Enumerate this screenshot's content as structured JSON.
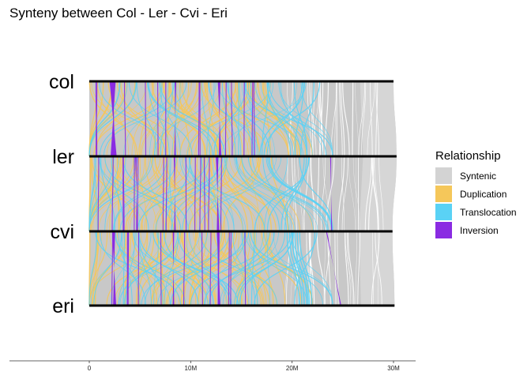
{
  "chart_data": {
    "type": "synteny",
    "title": "Synteny between Col - Ler - Cvi - Eri",
    "genomes": [
      {
        "name": "col",
        "length_bp": 30000000
      },
      {
        "name": "ler",
        "length_bp": 30300000
      },
      {
        "name": "cvi",
        "length_bp": 29900000
      },
      {
        "name": "eri",
        "length_bp": 30100000
      }
    ],
    "x_axis": {
      "range": [
        0,
        32000000
      ],
      "ticks": [
        0,
        10000000,
        20000000,
        30000000
      ],
      "tick_labels": [
        "0",
        "10M",
        "20M",
        "30M"
      ]
    },
    "legend": {
      "title": "Relationship",
      "position": "right",
      "items": [
        {
          "label": "Syntenic",
          "color": "#d3d3d3"
        },
        {
          "label": "Duplication",
          "color": "#f5c75a"
        },
        {
          "label": "Translocation",
          "color": "#5ad2f5"
        },
        {
          "label": "Inversion",
          "color": "#8a2be2"
        }
      ]
    },
    "syntenic_color": "#c8c8c8",
    "syntenic_end_color": "#d6d6d6",
    "inversions": [
      {
        "pair": 0,
        "x1": 2300000,
        "x2": 2400000,
        "width": 600000
      },
      {
        "pair": 0,
        "x1": 8500000,
        "x2": 8450000,
        "width": 150000
      },
      {
        "pair": 0,
        "x1": 12800000,
        "x2": 12900000,
        "width": 250000
      },
      {
        "pair": 1,
        "x1": 8400000,
        "x2": 8450000,
        "width": 150000
      },
      {
        "pair": 1,
        "x1": 12600000,
        "x2": 12700000,
        "width": 250000
      },
      {
        "pair": 1,
        "x1": 4600000,
        "x2": 4700000,
        "width": 150000
      },
      {
        "pair": 1,
        "x1": 23800000,
        "x2": 23900000,
        "width": 100000
      },
      {
        "pair": 2,
        "x1": 2400000,
        "x2": 2500000,
        "width": 300000
      },
      {
        "pair": 2,
        "x1": 8300000,
        "x2": 8300000,
        "width": 150000
      },
      {
        "pair": 2,
        "x1": 12700000,
        "x2": 12800000,
        "width": 250000
      },
      {
        "pair": 2,
        "x1": 23400000,
        "x2": 24800000,
        "width": 100000
      }
    ]
  }
}
